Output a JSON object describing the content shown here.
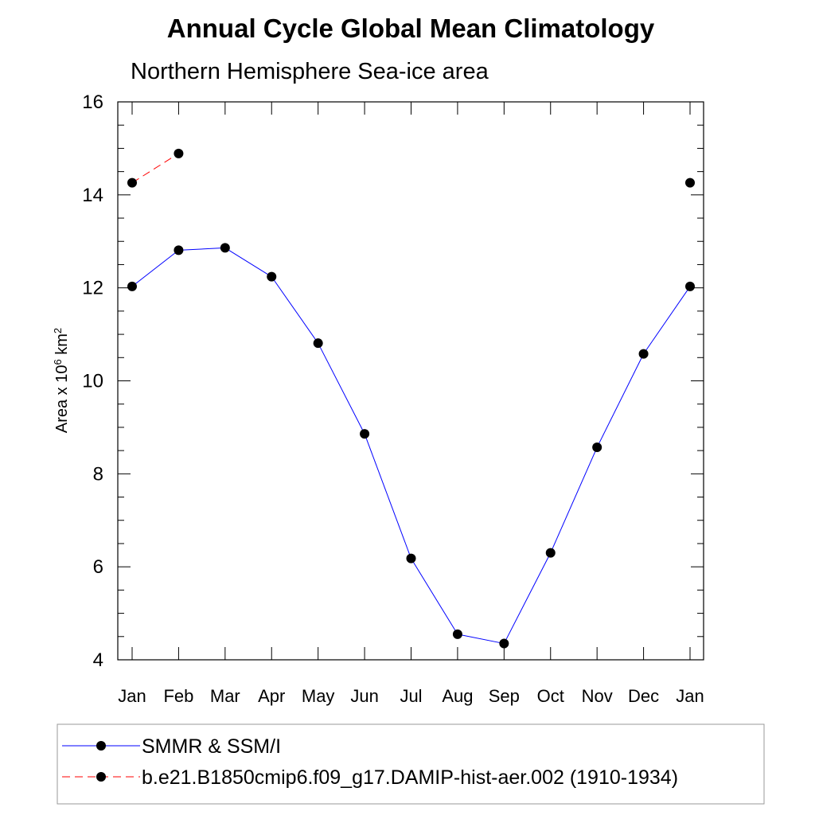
{
  "chart_data": {
    "type": "line",
    "title": "Annual Cycle Global Mean Climatology",
    "subtitle": "Northern Hemisphere Sea-ice area",
    "ylabel": {
      "prefix": "Area x 10",
      "exp": "6",
      "unit": " km",
      "unit_exp": "2"
    },
    "ylim": [
      4,
      16
    ],
    "yticks": [
      "4",
      "6",
      "8",
      "10",
      "12",
      "14",
      "16"
    ],
    "categories": [
      "Jan",
      "Feb",
      "Mar",
      "Apr",
      "May",
      "Jun",
      "Jul",
      "Aug",
      "Sep",
      "Oct",
      "Nov",
      "Dec",
      "Jan"
    ],
    "series": [
      {
        "name": "SMMR & SSM/I",
        "style": "solid",
        "color": "#0000ff",
        "values": [
          12.03,
          12.81,
          12.86,
          12.24,
          10.81,
          8.86,
          6.18,
          4.55,
          4.35,
          6.3,
          8.57,
          10.58,
          12.03
        ]
      },
      {
        "name": "b.e21.B1850cmip6.f09_g17.DAMIP-hist-aer.002 (1910-1934)",
        "style": "dashed",
        "color": "#ff0000",
        "values": [
          14.26,
          14.89,
          null,
          null,
          null,
          null,
          null,
          null,
          null,
          null,
          null,
          null,
          14.26
        ]
      }
    ]
  }
}
